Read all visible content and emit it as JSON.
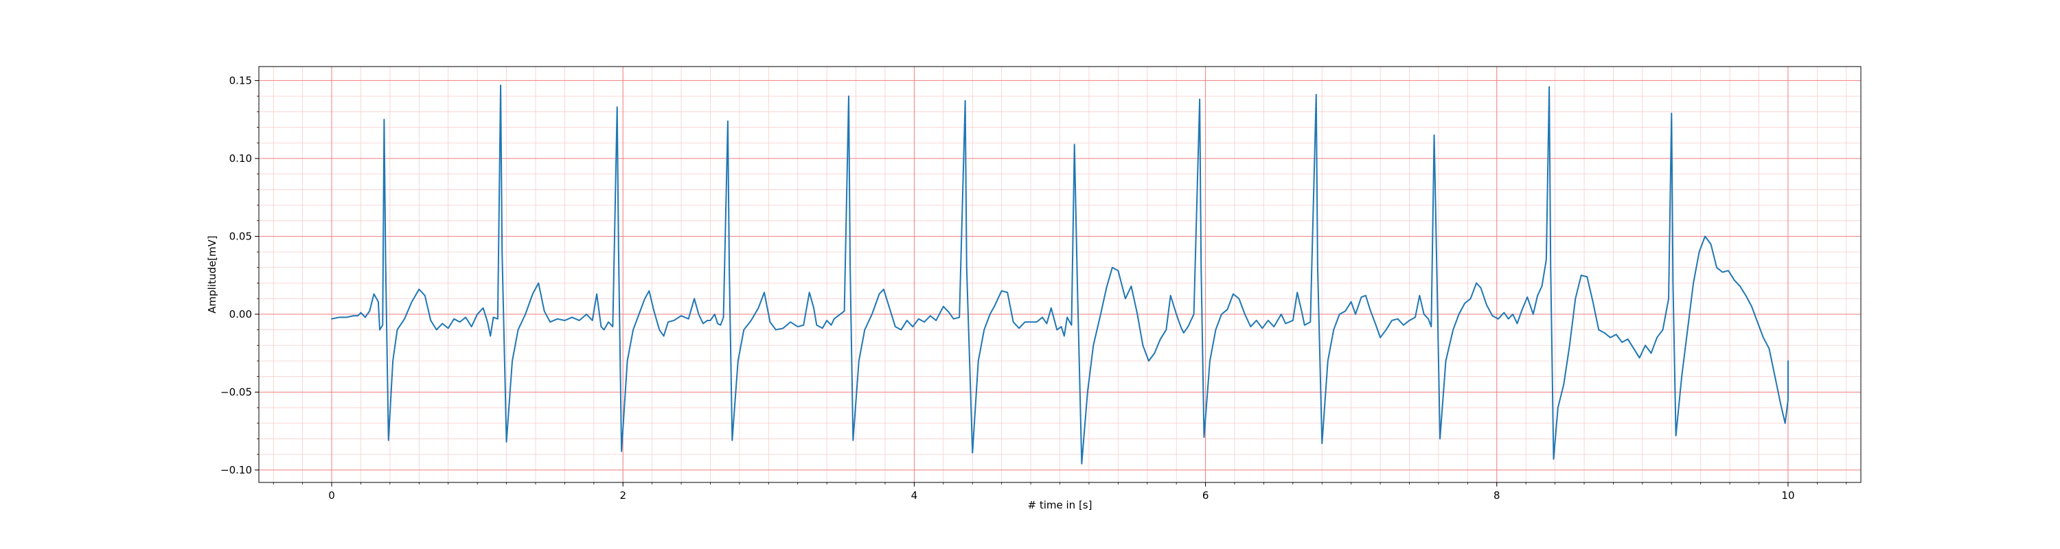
{
  "chart_data": {
    "type": "line",
    "title": "",
    "xlabel": "# time in [s]",
    "ylabel": "Amplitude[mV]",
    "xlim": [
      -0.5,
      10.5
    ],
    "ylim": [
      -0.108,
      0.159
    ],
    "x_ticks": [
      0,
      2,
      4,
      6,
      8,
      10
    ],
    "x_tick_labels": [
      "0",
      "2",
      "4",
      "6",
      "8",
      "10"
    ],
    "y_ticks": [
      -0.1,
      -0.05,
      0.0,
      0.05,
      0.1,
      0.15
    ],
    "y_tick_labels": [
      "−0.10",
      "−0.05",
      "0.00",
      "0.05",
      "0.10",
      "0.15"
    ],
    "grid": {
      "major": true,
      "minor": true,
      "major_color": "#f08080",
      "minor_color": "#f8cccc"
    },
    "legend": "none",
    "series": [
      {
        "color": "#1f77b4",
        "points": [
          [
            0.0,
            -0.003
          ],
          [
            0.05,
            -0.002
          ],
          [
            0.1,
            -0.002
          ],
          [
            0.15,
            -0.001
          ],
          [
            0.18,
            -0.001
          ],
          [
            0.2,
            0.001
          ],
          [
            0.23,
            -0.002
          ],
          [
            0.26,
            0.002
          ],
          [
            0.29,
            0.013
          ],
          [
            0.32,
            0.008
          ],
          [
            0.33,
            -0.01
          ],
          [
            0.35,
            -0.007
          ],
          [
            0.36,
            0.125
          ],
          [
            0.37,
            0.035
          ],
          [
            0.39,
            -0.081
          ],
          [
            0.42,
            -0.03
          ],
          [
            0.45,
            -0.01
          ],
          [
            0.5,
            -0.003
          ],
          [
            0.55,
            0.008
          ],
          [
            0.6,
            0.016
          ],
          [
            0.64,
            0.012
          ],
          [
            0.68,
            -0.004
          ],
          [
            0.72,
            -0.01
          ],
          [
            0.76,
            -0.006
          ],
          [
            0.8,
            -0.009
          ],
          [
            0.84,
            -0.003
          ],
          [
            0.88,
            -0.005
          ],
          [
            0.92,
            -0.002
          ],
          [
            0.96,
            -0.008
          ],
          [
            1.0,
            0.0
          ],
          [
            1.04,
            0.004
          ],
          [
            1.07,
            -0.005
          ],
          [
            1.09,
            -0.014
          ],
          [
            1.11,
            -0.002
          ],
          [
            1.14,
            -0.003
          ],
          [
            1.16,
            0.147
          ],
          [
            1.17,
            0.04
          ],
          [
            1.2,
            -0.082
          ],
          [
            1.24,
            -0.03
          ],
          [
            1.28,
            -0.01
          ],
          [
            1.33,
            0.0
          ],
          [
            1.38,
            0.013
          ],
          [
            1.42,
            0.02
          ],
          [
            1.46,
            0.002
          ],
          [
            1.5,
            -0.005
          ],
          [
            1.55,
            -0.003
          ],
          [
            1.6,
            -0.004
          ],
          [
            1.65,
            -0.002
          ],
          [
            1.7,
            -0.004
          ],
          [
            1.75,
            0.0
          ],
          [
            1.79,
            -0.004
          ],
          [
            1.82,
            0.013
          ],
          [
            1.85,
            -0.008
          ],
          [
            1.87,
            -0.01
          ],
          [
            1.9,
            -0.005
          ],
          [
            1.93,
            -0.008
          ],
          [
            1.96,
            0.133
          ],
          [
            1.97,
            0.04
          ],
          [
            1.99,
            -0.088
          ],
          [
            2.03,
            -0.03
          ],
          [
            2.07,
            -0.01
          ],
          [
            2.11,
            0.0
          ],
          [
            2.15,
            0.01
          ],
          [
            2.18,
            0.015
          ],
          [
            2.21,
            0.003
          ],
          [
            2.25,
            -0.01
          ],
          [
            2.28,
            -0.014
          ],
          [
            2.31,
            -0.005
          ],
          [
            2.35,
            -0.004
          ],
          [
            2.4,
            -0.001
          ],
          [
            2.45,
            -0.003
          ],
          [
            2.49,
            0.01
          ],
          [
            2.52,
            0.0
          ],
          [
            2.55,
            -0.006
          ],
          [
            2.58,
            -0.004
          ],
          [
            2.6,
            -0.004
          ],
          [
            2.63,
            0.0
          ],
          [
            2.65,
            -0.006
          ],
          [
            2.67,
            -0.007
          ],
          [
            2.69,
            -0.002
          ],
          [
            2.72,
            0.124
          ],
          [
            2.73,
            0.03
          ],
          [
            2.75,
            -0.081
          ],
          [
            2.79,
            -0.03
          ],
          [
            2.83,
            -0.01
          ],
          [
            2.88,
            -0.004
          ],
          [
            2.93,
            0.004
          ],
          [
            2.97,
            0.014
          ],
          [
            3.01,
            -0.005
          ],
          [
            3.05,
            -0.01
          ],
          [
            3.1,
            -0.009
          ],
          [
            3.15,
            -0.005
          ],
          [
            3.2,
            -0.008
          ],
          [
            3.24,
            -0.007
          ],
          [
            3.28,
            0.014
          ],
          [
            3.31,
            0.004
          ],
          [
            3.33,
            -0.007
          ],
          [
            3.37,
            -0.009
          ],
          [
            3.4,
            -0.004
          ],
          [
            3.43,
            -0.007
          ],
          [
            3.45,
            -0.003
          ],
          [
            3.52,
            0.002
          ],
          [
            3.55,
            0.14
          ],
          [
            3.56,
            0.03
          ],
          [
            3.58,
            -0.081
          ],
          [
            3.62,
            -0.03
          ],
          [
            3.66,
            -0.01
          ],
          [
            3.71,
            0.0
          ],
          [
            3.76,
            0.013
          ],
          [
            3.79,
            0.016
          ],
          [
            3.83,
            0.004
          ],
          [
            3.87,
            -0.008
          ],
          [
            3.91,
            -0.01
          ],
          [
            3.95,
            -0.004
          ],
          [
            3.99,
            -0.008
          ],
          [
            4.03,
            -0.003
          ],
          [
            4.07,
            -0.005
          ],
          [
            4.11,
            -0.001
          ],
          [
            4.15,
            -0.004
          ],
          [
            4.2,
            0.005
          ],
          [
            4.24,
            0.001
          ],
          [
            4.27,
            -0.003
          ],
          [
            4.31,
            -0.002
          ],
          [
            4.35,
            0.137
          ],
          [
            4.36,
            0.03
          ],
          [
            4.4,
            -0.089
          ],
          [
            4.44,
            -0.03
          ],
          [
            4.48,
            -0.01
          ],
          [
            4.52,
            0.0
          ],
          [
            4.55,
            0.005
          ],
          [
            4.6,
            0.015
          ],
          [
            4.64,
            0.014
          ],
          [
            4.68,
            -0.005
          ],
          [
            4.72,
            -0.009
          ],
          [
            4.76,
            -0.005
          ],
          [
            4.8,
            -0.005
          ],
          [
            4.84,
            -0.005
          ],
          [
            4.88,
            -0.002
          ],
          [
            4.91,
            -0.006
          ],
          [
            4.94,
            0.004
          ],
          [
            4.98,
            -0.01
          ],
          [
            5.01,
            -0.008
          ],
          [
            5.03,
            -0.014
          ],
          [
            5.05,
            -0.002
          ],
          [
            5.08,
            -0.007
          ],
          [
            5.1,
            0.109
          ],
          [
            5.12,
            0.02
          ],
          [
            5.15,
            -0.096
          ],
          [
            5.19,
            -0.05
          ],
          [
            5.23,
            -0.02
          ],
          [
            5.28,
            0.0
          ],
          [
            5.32,
            0.017
          ],
          [
            5.36,
            0.03
          ],
          [
            5.4,
            0.028
          ],
          [
            5.45,
            0.01
          ],
          [
            5.49,
            0.018
          ],
          [
            5.53,
            0.001
          ],
          [
            5.57,
            -0.02
          ],
          [
            5.61,
            -0.03
          ],
          [
            5.65,
            -0.025
          ],
          [
            5.69,
            -0.016
          ],
          [
            5.73,
            -0.01
          ],
          [
            5.76,
            0.012
          ],
          [
            5.8,
            0.0
          ],
          [
            5.83,
            -0.008
          ],
          [
            5.85,
            -0.012
          ],
          [
            5.88,
            -0.008
          ],
          [
            5.92,
            0.0
          ],
          [
            5.96,
            0.138
          ],
          [
            5.97,
            0.03
          ],
          [
            5.99,
            -0.079
          ],
          [
            6.03,
            -0.03
          ],
          [
            6.07,
            -0.01
          ],
          [
            6.11,
            0.0
          ],
          [
            6.15,
            0.003
          ],
          [
            6.19,
            0.013
          ],
          [
            6.23,
            0.01
          ],
          [
            6.27,
            0.0
          ],
          [
            6.31,
            -0.008
          ],
          [
            6.35,
            -0.004
          ],
          [
            6.39,
            -0.009
          ],
          [
            6.43,
            -0.004
          ],
          [
            6.47,
            -0.008
          ],
          [
            6.52,
            0.0
          ],
          [
            6.55,
            -0.006
          ],
          [
            6.6,
            -0.004
          ],
          [
            6.63,
            0.014
          ],
          [
            6.66,
            0.002
          ],
          [
            6.68,
            -0.007
          ],
          [
            6.72,
            -0.005
          ],
          [
            6.76,
            0.141
          ],
          [
            6.77,
            0.03
          ],
          [
            6.8,
            -0.083
          ],
          [
            6.84,
            -0.03
          ],
          [
            6.88,
            -0.01
          ],
          [
            6.92,
            0.0
          ],
          [
            6.96,
            0.002
          ],
          [
            7.0,
            0.008
          ],
          [
            7.03,
            0.0
          ],
          [
            7.07,
            0.011
          ],
          [
            7.1,
            0.012
          ],
          [
            7.13,
            0.003
          ],
          [
            7.17,
            -0.007
          ],
          [
            7.2,
            -0.015
          ],
          [
            7.24,
            -0.01
          ],
          [
            7.28,
            -0.004
          ],
          [
            7.32,
            -0.003
          ],
          [
            7.36,
            -0.007
          ],
          [
            7.4,
            -0.004
          ],
          [
            7.44,
            -0.002
          ],
          [
            7.47,
            0.012
          ],
          [
            7.5,
            0.0
          ],
          [
            7.53,
            -0.003
          ],
          [
            7.55,
            -0.008
          ],
          [
            7.57,
            0.115
          ],
          [
            7.59,
            0.02
          ],
          [
            7.61,
            -0.08
          ],
          [
            7.65,
            -0.03
          ],
          [
            7.7,
            -0.01
          ],
          [
            7.74,
            0.0
          ],
          [
            7.78,
            0.007
          ],
          [
            7.82,
            0.01
          ],
          [
            7.86,
            0.02
          ],
          [
            7.89,
            0.017
          ],
          [
            7.93,
            0.006
          ],
          [
            7.97,
            -0.001
          ],
          [
            8.01,
            -0.003
          ],
          [
            8.05,
            0.001
          ],
          [
            8.08,
            -0.003
          ],
          [
            8.11,
            0.0
          ],
          [
            8.14,
            -0.006
          ],
          [
            8.17,
            0.002
          ],
          [
            8.21,
            0.011
          ],
          [
            8.25,
            0.0
          ],
          [
            8.28,
            0.012
          ],
          [
            8.31,
            0.018
          ],
          [
            8.34,
            0.035
          ],
          [
            8.36,
            0.146
          ],
          [
            8.37,
            0.03
          ],
          [
            8.39,
            -0.093
          ],
          [
            8.42,
            -0.06
          ],
          [
            8.46,
            -0.045
          ],
          [
            8.5,
            -0.02
          ],
          [
            8.54,
            0.01
          ],
          [
            8.58,
            0.025
          ],
          [
            8.62,
            0.024
          ],
          [
            8.66,
            0.008
          ],
          [
            8.7,
            -0.01
          ],
          [
            8.74,
            -0.012
          ],
          [
            8.78,
            -0.015
          ],
          [
            8.82,
            -0.013
          ],
          [
            8.86,
            -0.018
          ],
          [
            8.9,
            -0.016
          ],
          [
            8.94,
            -0.022
          ],
          [
            8.98,
            -0.028
          ],
          [
            9.02,
            -0.02
          ],
          [
            9.06,
            -0.025
          ],
          [
            9.1,
            -0.015
          ],
          [
            9.14,
            -0.01
          ],
          [
            9.18,
            0.01
          ],
          [
            9.2,
            0.129
          ],
          [
            9.21,
            0.02
          ],
          [
            9.23,
            -0.078
          ],
          [
            9.27,
            -0.04
          ],
          [
            9.31,
            -0.01
          ],
          [
            9.35,
            0.02
          ],
          [
            9.39,
            0.04
          ],
          [
            9.43,
            0.05
          ],
          [
            9.47,
            0.045
          ],
          [
            9.51,
            0.03
          ],
          [
            9.55,
            0.027
          ],
          [
            9.59,
            0.028
          ],
          [
            9.63,
            0.022
          ],
          [
            9.67,
            0.018
          ],
          [
            9.71,
            0.012
          ],
          [
            9.75,
            0.005
          ],
          [
            9.79,
            -0.005
          ],
          [
            9.83,
            -0.015
          ],
          [
            9.87,
            -0.022
          ],
          [
            9.91,
            -0.04
          ],
          [
            9.95,
            -0.058
          ],
          [
            9.98,
            -0.07
          ],
          [
            10.0,
            -0.055
          ],
          [
            10.0,
            -0.03
          ]
        ]
      }
    ]
  }
}
